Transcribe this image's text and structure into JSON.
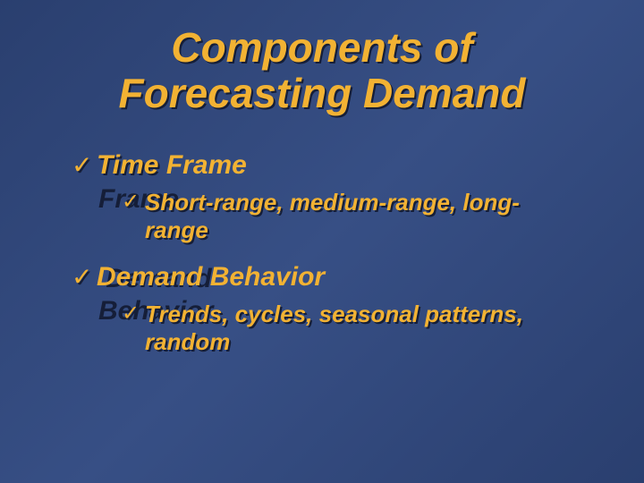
{
  "slide": {
    "background_gradient": [
      "#2a3f6f",
      "#374f85",
      "#2a3f6f"
    ],
    "title_color": "#f2b233",
    "text_color": "#f2b233",
    "shadow_color": "#151e38",
    "bullet_glyph": "✓",
    "title_line1": "Components of",
    "title_line2": "Forecasting Demand",
    "title_fontsize": 46,
    "level1_fontsize": 30,
    "level2_fontsize": 26,
    "items": [
      {
        "label": "Time Frame",
        "children": [
          {
            "label": "Short-range, medium-range, long-range"
          }
        ]
      },
      {
        "label": " Demand Behavior",
        "children": [
          {
            "label": "Trends, cycles, seasonal patterns, random"
          }
        ]
      }
    ]
  }
}
